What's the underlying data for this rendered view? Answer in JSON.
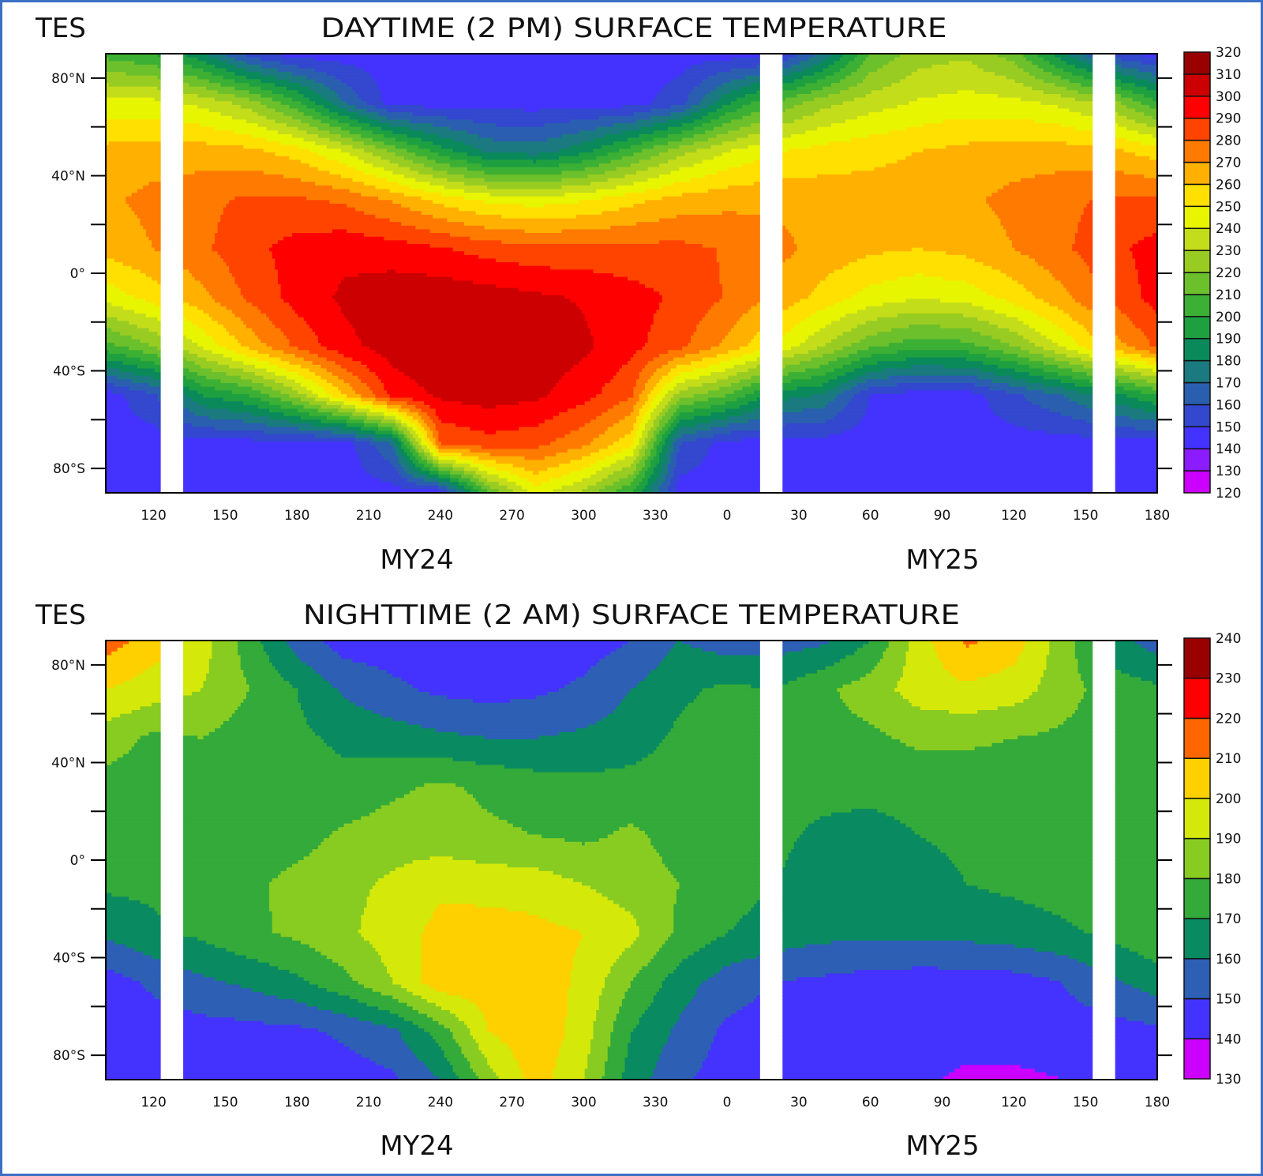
{
  "chart_data": [
    {
      "type": "heatmap",
      "instrument_label": "TES",
      "title": "DAYTIME (2 PM) SURFACE TEMPERATURE",
      "year_labels": [
        "MY24",
        "MY25"
      ],
      "xtick_labels": [
        "120",
        "150",
        "180",
        "210",
        "240",
        "270",
        "300",
        "330",
        "0",
        "30",
        "60",
        "90",
        "120",
        "150",
        "180"
      ],
      "yticks": [
        {
          "lat": 80,
          "label": "80°N"
        },
        {
          "lat": 40,
          "label": "40°N"
        },
        {
          "lat": 0,
          "label": "0°"
        },
        {
          "lat": -40,
          "label": "40°S"
        },
        {
          "lat": -80,
          "label": "80°S"
        }
      ],
      "ls": [
        100,
        120,
        140,
        160,
        180,
        200,
        220,
        240,
        260,
        280,
        300,
        320,
        340,
        0,
        20,
        40,
        60,
        80,
        100,
        120,
        140,
        160,
        180
      ],
      "year": [
        "MY24",
        "MY24",
        "MY24",
        "MY24",
        "MY24",
        "MY24",
        "MY24",
        "MY24",
        "MY24",
        "MY24",
        "MY24",
        "MY24",
        "MY24",
        "MY25",
        "MY25",
        "MY25",
        "MY25",
        "MY25",
        "MY25",
        "MY25",
        "MY25",
        "MY25",
        "MY25"
      ],
      "lat": [
        90,
        70,
        50,
        30,
        10,
        -10,
        -30,
        -50,
        -70,
        -90
      ],
      "z": [
        [
          206,
          200,
          183,
          155,
          145,
          145,
          145,
          145,
          145,
          145,
          145,
          145,
          145,
          145,
          145,
          172,
          210,
          225,
          228,
          215,
          183,
          155,
          145
        ],
        [
          244,
          243,
          237,
          225,
          202,
          170,
          145,
          145,
          145,
          145,
          145,
          145,
          156,
          188,
          211,
          226,
          235,
          241,
          244,
          243,
          237,
          225,
          202
        ],
        [
          263,
          265,
          265,
          263,
          255,
          240,
          218,
          195,
          178,
          175,
          187,
          206,
          226,
          240,
          249,
          254,
          257,
          260,
          263,
          265,
          265,
          263,
          255
        ],
        [
          268,
          273,
          277,
          282,
          282,
          278,
          269,
          257,
          248,
          245,
          249,
          257,
          264,
          267,
          268,
          266,
          265,
          265,
          268,
          273,
          277,
          282,
          282
        ],
        [
          263,
          270,
          278,
          287,
          294,
          297,
          295,
          291,
          286,
          283,
          283,
          283,
          283,
          279,
          273,
          267,
          262,
          260,
          263,
          270,
          278,
          287,
          294
        ],
        [
          244,
          254,
          267,
          282,
          294,
          302,
          306,
          307,
          305,
          302,
          299,
          294,
          288,
          279,
          268,
          256,
          246,
          241,
          244,
          254,
          267,
          282,
          294
        ],
        [
          206,
          220,
          241,
          263,
          282,
          297,
          305,
          310,
          310,
          307,
          302,
          293,
          283,
          267,
          249,
          230,
          212,
          203,
          206,
          220,
          241,
          263,
          282
        ],
        [
          145,
          158,
          190,
          200,
          225,
          260,
          293,
          302,
          305,
          302,
          294,
          281,
          225,
          210,
          185,
          179,
          150,
          145,
          145,
          158,
          170,
          185,
          200
        ],
        [
          145,
          145,
          145,
          145,
          145,
          145,
          170,
          280,
          286,
          283,
          272,
          253,
          160,
          145,
          145,
          145,
          145,
          145,
          145,
          145,
          145,
          145,
          145
        ],
        [
          145,
          145,
          145,
          145,
          145,
          145,
          145,
          145,
          210,
          245,
          228,
          199,
          145,
          145,
          145,
          145,
          145,
          145,
          145,
          145,
          145,
          145,
          145
        ]
      ],
      "missing": [
        {
          "year": "MY24",
          "from": 123,
          "to": 132
        },
        {
          "year": "MY25",
          "from": 13,
          "to": 23
        },
        {
          "year": "MY25",
          "from": 153,
          "to": 162
        }
      ],
      "colorbar": {
        "min": 120,
        "step": 10,
        "labels": [
          "320",
          "310",
          "300",
          "290",
          "280",
          "270",
          "260",
          "250",
          "240",
          "230",
          "220",
          "210",
          "200",
          "190",
          "180",
          "170",
          "160",
          "150",
          "140",
          "130",
          "120"
        ],
        "colors": [
          "#cc00ff",
          "#8a1cff",
          "#4433ff",
          "#3347cf",
          "#2a5fb0",
          "#1a7a80",
          "#0a8a5a",
          "#1fa040",
          "#3cb034",
          "#6cc02c",
          "#99cc22",
          "#c4dd1a",
          "#e8f500",
          "#ffe000",
          "#ffb000",
          "#ff7a00",
          "#ff4400",
          "#ff0000",
          "#cc0000",
          "#990000"
        ]
      }
    },
    {
      "type": "heatmap",
      "instrument_label": "TES",
      "title": "NIGHTTIME (2 AM) SURFACE TEMPERATURE",
      "year_labels": [
        "MY24",
        "MY25"
      ],
      "xtick_labels": [
        "120",
        "150",
        "180",
        "210",
        "240",
        "270",
        "300",
        "330",
        "0",
        "30",
        "60",
        "90",
        "120",
        "150",
        "180"
      ],
      "yticks": [
        {
          "lat": 80,
          "label": "80°N"
        },
        {
          "lat": 40,
          "label": "40°N"
        },
        {
          "lat": 0,
          "label": "0°"
        },
        {
          "lat": -40,
          "label": "40°S"
        },
        {
          "lat": -80,
          "label": "80°S"
        }
      ],
      "ls": [
        100,
        120,
        140,
        160,
        180,
        200,
        220,
        240,
        260,
        280,
        300,
        320,
        340,
        0,
        20,
        40,
        60,
        80,
        100,
        120,
        140,
        160,
        180
      ],
      "year": [
        "MY24",
        "MY24",
        "MY24",
        "MY24",
        "MY24",
        "MY24",
        "MY24",
        "MY24",
        "MY24",
        "MY24",
        "MY24",
        "MY24",
        "MY24",
        "MY25",
        "MY25",
        "MY25",
        "MY25",
        "MY25",
        "MY25",
        "MY25",
        "MY25",
        "MY25",
        "MY25"
      ],
      "lat": [
        90,
        70,
        50,
        30,
        10,
        -10,
        -30,
        -50,
        -70,
        -90
      ],
      "z": [
        [
          215,
          205,
          195,
          175,
          155,
          145,
          145,
          145,
          142,
          145,
          145,
          150,
          160,
          155,
          155,
          158,
          170,
          195,
          212,
          205,
          185,
          165,
          155
        ],
        [
          200,
          195,
          190,
          180,
          170,
          158,
          152,
          148,
          146,
          148,
          152,
          160,
          168,
          172,
          170,
          178,
          185,
          195,
          198,
          195,
          185,
          175,
          172
        ],
        [
          185,
          178,
          180,
          175,
          172,
          168,
          165,
          162,
          160,
          160,
          162,
          165,
          172,
          175,
          175,
          176,
          178,
          182,
          182,
          180,
          178,
          175,
          175
        ],
        [
          176,
          175,
          175,
          174,
          174,
          173,
          178,
          182,
          178,
          175,
          173,
          174,
          175,
          175,
          174,
          173,
          173,
          174,
          174,
          174,
          174,
          175,
          176
        ],
        [
          174,
          174,
          175,
          175,
          176,
          182,
          185,
          184,
          182,
          180,
          178,
          182,
          176,
          175,
          172,
          168,
          166,
          170,
          172,
          172,
          174,
          176,
          180
        ],
        [
          172,
          172,
          175,
          178,
          183,
          187,
          192,
          198,
          196,
          195,
          190,
          185,
          180,
          174,
          170,
          166,
          164,
          166,
          170,
          172,
          174,
          177,
          180
        ],
        [
          162,
          168,
          172,
          178,
          182,
          188,
          195,
          203,
          205,
          203,
          200,
          193,
          178,
          170,
          166,
          163,
          162,
          162,
          163,
          165,
          168,
          172,
          178
        ],
        [
          145,
          152,
          158,
          162,
          168,
          177,
          190,
          207,
          205,
          205,
          198,
          180,
          165,
          155,
          150,
          148,
          146,
          145,
          145,
          146,
          150,
          158,
          165
        ],
        [
          145,
          145,
          146,
          147,
          148,
          152,
          158,
          175,
          200,
          208,
          195,
          170,
          158,
          148,
          145,
          144,
          144,
          144,
          144,
          145,
          145,
          146,
          148
        ],
        [
          140,
          140,
          140,
          142,
          144,
          145,
          148,
          160,
          185,
          205,
          190,
          165,
          152,
          145,
          145,
          145,
          143,
          142,
          138,
          138,
          140,
          143,
          145
        ]
      ],
      "missing": [
        {
          "year": "MY24",
          "from": 123,
          "to": 132
        },
        {
          "year": "MY25",
          "from": 13,
          "to": 23
        },
        {
          "year": "MY25",
          "from": 153,
          "to": 162
        }
      ],
      "colorbar": {
        "min": 130,
        "step": 10,
        "labels": [
          "240",
          "230",
          "220",
          "210",
          "200",
          "190",
          "180",
          "170",
          "160",
          "150",
          "140",
          "130"
        ],
        "colors": [
          "#cc00ff",
          "#4433ff",
          "#2d5fb5",
          "#0a8a60",
          "#33aa3a",
          "#88cc22",
          "#d4e80a",
          "#ffd000",
          "#ff6600",
          "#ff0000",
          "#990000"
        ]
      }
    }
  ]
}
